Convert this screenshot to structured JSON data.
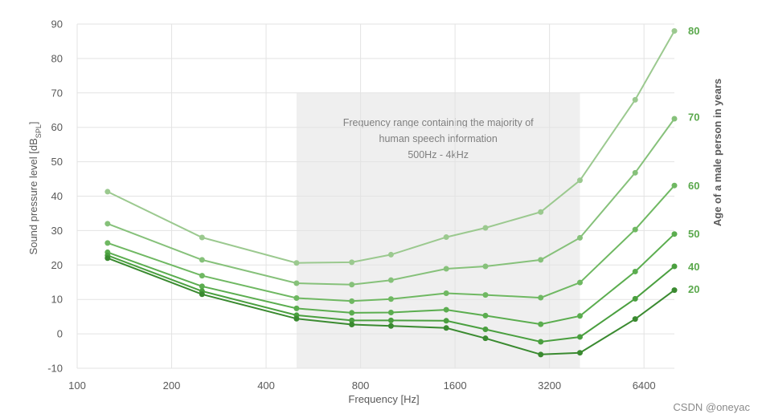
{
  "chart_data": {
    "type": "line",
    "xlabel": "Frequency [Hz]",
    "ylabel_main": "Sound pressure level [dB",
    "ylabel_sub": "SPL",
    "ylabel_end": "]",
    "y2label": "Age of a male person in years",
    "x_scale": "log2",
    "xlim": [
      100,
      8000
    ],
    "ylim": [
      -10,
      90
    ],
    "x_ticks": [
      100,
      200,
      400,
      800,
      1600,
      3200,
      6400
    ],
    "y_ticks": [
      -10,
      0,
      10,
      20,
      30,
      40,
      50,
      60,
      70,
      80,
      90
    ],
    "shaded_region": {
      "x_range": [
        500,
        4000
      ],
      "y_range": [
        -10,
        70
      ],
      "color": "#efefef",
      "text_lines": [
        "Frequency range containing the majority of",
        "human speech information",
        "500Hz - 4kHz"
      ]
    },
    "x": [
      125,
      250,
      500,
      750,
      1000,
      1500,
      2000,
      3000,
      4000,
      6000,
      8000
    ],
    "series": [
      {
        "name": "80",
        "color": "#9bc98f",
        "values": [
          41.3,
          28,
          20.6,
          20.8,
          23,
          28.1,
          30.8,
          35.4,
          44.6,
          68,
          88
        ]
      },
      {
        "name": "70",
        "color": "#86c17a",
        "values": [
          32,
          21.5,
          14.7,
          14.3,
          15.6,
          18.9,
          19.6,
          21.5,
          27.9,
          46.8,
          62.5
        ]
      },
      {
        "name": "60",
        "color": "#6fb862",
        "values": [
          26.4,
          16.9,
          10.4,
          9.5,
          10.1,
          11.8,
          11.3,
          10.5,
          14.9,
          30.3,
          43.1
        ]
      },
      {
        "name": "50",
        "color": "#5bad4f",
        "values": [
          23.7,
          13.8,
          7.4,
          6.1,
          6.2,
          7,
          5.3,
          2.8,
          5.2,
          18.1,
          29
        ]
      },
      {
        "name": "40",
        "color": "#4a9f3f",
        "values": [
          22.8,
          12.4,
          5.4,
          3.9,
          3.9,
          3.8,
          1.3,
          -2.3,
          -0.9,
          10.2,
          19.6
        ]
      },
      {
        "name": "20",
        "color": "#3a8a30",
        "values": [
          22,
          11.5,
          4.4,
          2.7,
          2.3,
          1.7,
          -1.3,
          -6,
          -5.5,
          4.3,
          12.7
        ]
      }
    ],
    "age_labels": [
      {
        "text": "80",
        "y": 88
      },
      {
        "text": "70",
        "y": 63
      },
      {
        "text": "60",
        "y": 43
      },
      {
        "text": "50",
        "y": 29
      },
      {
        "text": "40",
        "y": 19.5
      },
      {
        "text": "20",
        "y": 13
      }
    ],
    "label_color": "#5aa84c"
  },
  "watermark": "CSDN @oneyac"
}
